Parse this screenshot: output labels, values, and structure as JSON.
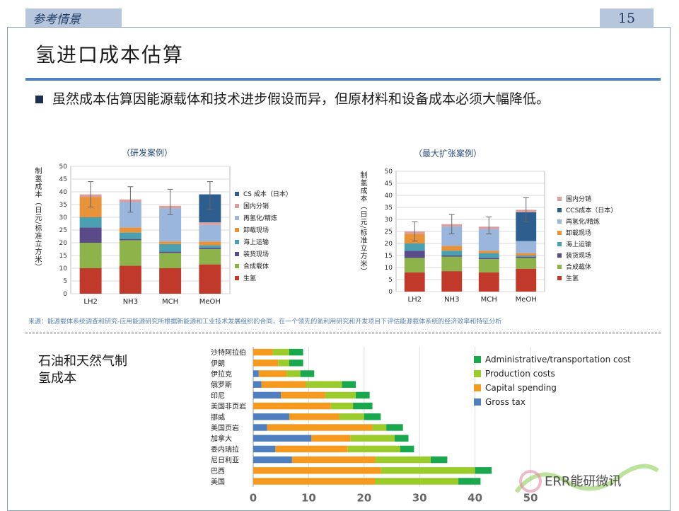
{
  "header": {
    "tag": "参考情景",
    "page_number": "15"
  },
  "title": "氢进口成本估算",
  "bullet": "虽然成本估算因能源载体和技术进步假设而异，但原材料和设备成本必须大幅降低。",
  "source": "来源：能源载体系统调查和研究-应用能源研究所根据新能源和工业技术发展组织的合同，在一个领先的氢利用研究和开发项目下评估能源载体系统的经济效率和特征分析",
  "bottom_title": "石油和天然气制氢成本",
  "watermark": "ERR能研微讯",
  "chart_data": [
    {
      "type": "bar",
      "stacked": true,
      "title": "（研发案例）",
      "ylabel": "制氢成本（日元/标准立方米）",
      "ylim": [
        0,
        50
      ],
      "yticks": [
        "0",
        "5",
        "10",
        "15",
        "20",
        "25",
        "30",
        "35",
        "40",
        "45",
        "50"
      ],
      "categories": [
        "LH2",
        "NH3",
        "MCH",
        "MeOH"
      ],
      "legend": [
        "CS 成本（日本）",
        "国内分销",
        "再氢化/精炼",
        "卸载现场",
        "海上运输",
        "装货现场",
        "合成载体",
        "生氢"
      ],
      "series": [
        {
          "name": "生氢",
          "color": "#c0392b",
          "values": [
            10,
            11,
            10,
            11.5
          ]
        },
        {
          "name": "合成载体",
          "color": "#8db34a",
          "values": [
            10,
            10,
            6,
            6
          ]
        },
        {
          "name": "装货现场",
          "color": "#5b4a8a",
          "values": [
            6,
            0.5,
            0.5,
            0.5
          ]
        },
        {
          "name": "海上运输",
          "color": "#4aa0b0",
          "values": [
            4,
            2.5,
            3,
            1
          ]
        },
        {
          "name": "卸载现场",
          "color": "#e8923a",
          "values": [
            8,
            2,
            1,
            1.5
          ]
        },
        {
          "name": "再氢化/精炼",
          "color": "#9bb6dc",
          "values": [
            0,
            10,
            13,
            6.5
          ]
        },
        {
          "name": "国内分销",
          "color": "#d9a0a0",
          "values": [
            1,
            1,
            1,
            1
          ]
        },
        {
          "name": "CS 成本（日本）",
          "color": "#2e5e8e",
          "values": [
            0,
            0,
            0,
            11
          ]
        }
      ],
      "error_bars": [
        [
          34,
          44
        ],
        [
          32,
          42
        ],
        [
          31,
          41
        ],
        [
          33,
          44
        ]
      ]
    },
    {
      "type": "bar",
      "stacked": true,
      "title": "（最大扩张案例）",
      "ylabel": "制氢成本（日元/标准立方米）",
      "ylim": [
        0,
        50
      ],
      "yticks": [
        "0",
        "5",
        "10",
        "15",
        "20",
        "25",
        "30",
        "35",
        "40",
        "45",
        "50"
      ],
      "categories": [
        "LH2",
        "NH3",
        "MCH",
        "MeOH"
      ],
      "legend": [
        "国内分销",
        "CCS成本（日本）",
        "再氢化/精炼",
        "卸载现场",
        "海上运输",
        "装货现场",
        "合成载体",
        "生氢"
      ],
      "series": [
        {
          "name": "生氢",
          "color": "#c0392b",
          "values": [
            8,
            8.5,
            8,
            9.5
          ]
        },
        {
          "name": "合成载体",
          "color": "#8db34a",
          "values": [
            6,
            6,
            5.5,
            4.5
          ]
        },
        {
          "name": "装货现场",
          "color": "#5b4a8a",
          "values": [
            3,
            0.5,
            0.5,
            0.5
          ]
        },
        {
          "name": "海上运输",
          "color": "#4aa0b0",
          "values": [
            3,
            2,
            2,
            0.5
          ]
        },
        {
          "name": "卸载现场",
          "color": "#e8923a",
          "values": [
            4,
            2,
            1,
            1
          ]
        },
        {
          "name": "再氢化/精炼",
          "color": "#9bb6dc",
          "values": [
            0,
            8,
            9,
            5
          ]
        },
        {
          "name": "CCS成本（日本）",
          "color": "#2e5e8e",
          "values": [
            0,
            0,
            0,
            12
          ]
        },
        {
          "name": "国内分销",
          "color": "#d9a0a0",
          "values": [
            1,
            1,
            1,
            1
          ]
        }
      ],
      "error_bars": [
        [
          21,
          29
        ],
        [
          24,
          32
        ],
        [
          24,
          31
        ],
        [
          29,
          39
        ]
      ]
    },
    {
      "type": "bar",
      "orientation": "horizontal",
      "stacked": true,
      "xlim": [
        0,
        50
      ],
      "xticks": [
        "0",
        "10",
        "20",
        "30",
        "40",
        "50"
      ],
      "categories": [
        "沙特阿拉伯",
        "伊朗",
        "伊拉克",
        "俄罗斯",
        "印尼",
        "美国非页岩",
        "挪威",
        "美国页岩",
        "加拿大",
        "委内瑞拉",
        "尼日利亚",
        "巴西",
        "美国"
      ],
      "legend": [
        "Administrative/transportation cost",
        "Production costs",
        "Capital spending",
        "Gross tax"
      ],
      "series": [
        {
          "name": "Gross tax",
          "color": "#4f7fbf",
          "values": [
            0,
            0,
            1,
            1.5,
            5,
            0,
            6.5,
            2.5,
            10.5,
            4,
            7,
            0,
            0
          ]
        },
        {
          "name": "Capital spending",
          "color": "#f59a1e",
          "values": [
            3.5,
            4.5,
            5,
            8,
            8,
            14,
            9,
            19,
            7,
            13,
            15,
            23,
            22
          ]
        },
        {
          "name": "Production costs",
          "color": "#9ccc2c",
          "values": [
            3,
            2,
            2.5,
            6.5,
            5.5,
            4,
            4.5,
            2.5,
            8,
            9.5,
            10,
            17,
            15
          ]
        },
        {
          "name": "Administrative/transportation cost",
          "color": "#1aa84f",
          "values": [
            2.5,
            2.5,
            2.5,
            2.5,
            2.5,
            3.5,
            3,
            3,
            2.5,
            2.5,
            3,
            3,
            4
          ]
        }
      ]
    }
  ]
}
